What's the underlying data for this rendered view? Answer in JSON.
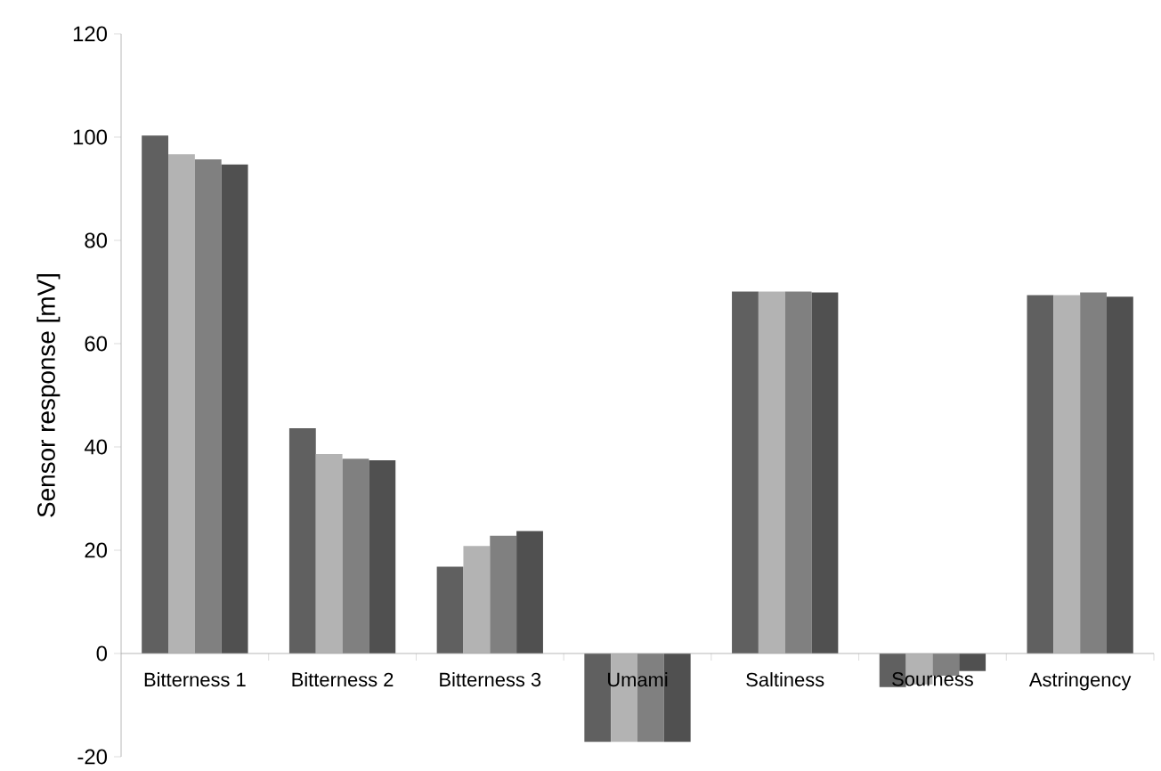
{
  "chart_data": {
    "type": "bar",
    "ylabel": "Sensor response [mV]",
    "categories": [
      "Bitterness 1",
      "Bitterness 2",
      "Bitterness 3",
      "Umami",
      "Saltiness",
      "Sourness",
      "Astringency"
    ],
    "series": [
      {
        "color": "#606060",
        "values": [
          100.3,
          43.6,
          16.8,
          -17.1,
          70.1,
          -6.5,
          69.4
        ]
      },
      {
        "color": "#b3b3b3",
        "values": [
          96.7,
          38.6,
          20.8,
          -17.1,
          70.1,
          -6.0,
          69.4
        ]
      },
      {
        "color": "#808080",
        "values": [
          95.7,
          37.7,
          22.8,
          -17.1,
          70.1,
          -4.3,
          69.9
        ]
      },
      {
        "color": "#505050",
        "values": [
          94.7,
          37.4,
          23.7,
          -17.1,
          69.9,
          -3.4,
          69.1
        ]
      }
    ],
    "ylim": [
      -20,
      120
    ],
    "yticks": [
      -20,
      0,
      20,
      40,
      60,
      80,
      100,
      120
    ],
    "grid": false
  }
}
